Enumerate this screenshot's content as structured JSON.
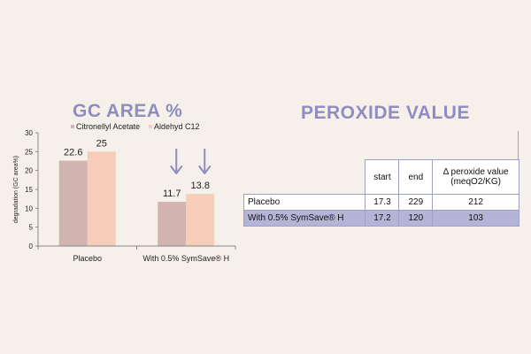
{
  "gc": {
    "title": "GC AREA %"
  },
  "peroxide": {
    "title": "PEROXIDE VALUE",
    "headers": [
      "start",
      "end",
      "Δ peroxide value\n(meqO2/KG)"
    ],
    "rows": [
      {
        "label": "Placebo",
        "start": "17.3",
        "end": "229",
        "delta": "212"
      },
      {
        "label": "With 0.5% SymSave® H",
        "start": "17.2",
        "end": "120",
        "delta": "103"
      }
    ]
  },
  "colors": {
    "citronellyl_acetate": "#d1b4b0",
    "aldehyd_c12": "#f6cdb9",
    "accent": "#8f8dc0",
    "table_alt_row": "#b6b4d6",
    "background": "#f6f0ea"
  },
  "chart_data": {
    "type": "bar",
    "categories": [
      "Placebo",
      "With 0.5% SymSave® H"
    ],
    "series": [
      {
        "name": "Citronellyl Acetate",
        "values": [
          22.6,
          11.7
        ],
        "labels": [
          "22.6",
          "11.7"
        ]
      },
      {
        "name": "Aldehyd C12",
        "values": [
          25,
          13.8
        ],
        "labels": [
          "25",
          "13.8"
        ]
      }
    ],
    "ylabel": "degradation (GC area%)",
    "ylim": [
      0,
      30
    ],
    "yticks": [
      0,
      5,
      10,
      15,
      20,
      25,
      30
    ],
    "grid": false,
    "legend": "top",
    "annotations": [
      "down-arrow over both SymSave bars"
    ]
  }
}
